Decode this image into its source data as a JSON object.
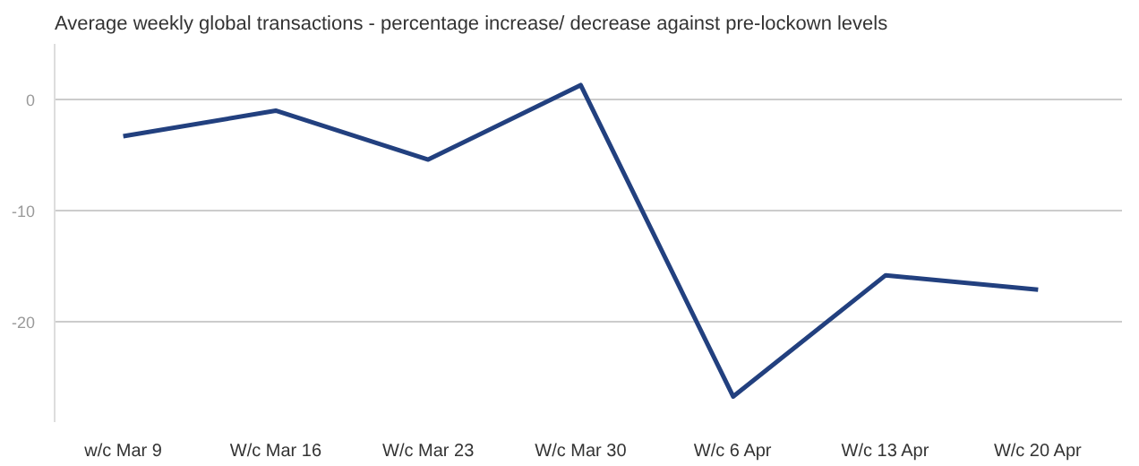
{
  "chart_data": {
    "type": "line",
    "title": "Average weekly global transactions - percentage increase/ decrease against pre-lockown levels",
    "categories": [
      "w/c Mar 9",
      "W/c Mar 16",
      "W/c Mar 23",
      "W/c Mar 30",
      "W/c 6 Apr",
      "W/c 13 Apr",
      "W/c 20 Apr"
    ],
    "series": [
      {
        "color": "#22407f",
        "values": [
          -3.3,
          -1,
          -5.4,
          1.3,
          -26.7,
          -15.8,
          -17.1
        ]
      }
    ],
    "ylim": [
      -29,
      5
    ],
    "yticks": [
      0,
      -10,
      -20
    ],
    "grid": "y",
    "marker": "none",
    "line_style": "solid"
  }
}
